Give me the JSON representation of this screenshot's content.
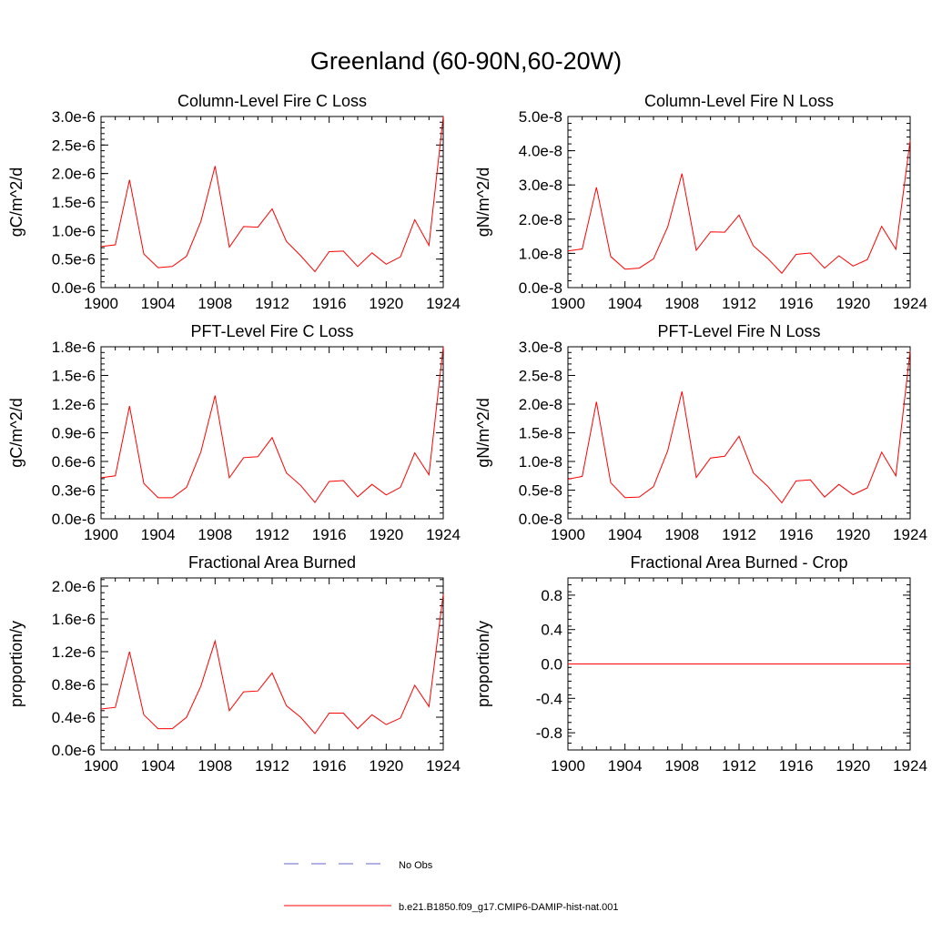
{
  "title": "Greenland (60-90N,60-20W)",
  "legend": [
    {
      "label": "No Obs",
      "color": "#6666cc",
      "style": "dashed"
    },
    {
      "label": "b.e21.B1850.f09_g17.CMIP6-DAMIP-hist-nat.001",
      "color": "#ff0000",
      "style": "solid"
    }
  ],
  "chart_data": [
    {
      "type": "line",
      "title": "Column-Level Fire C Loss",
      "ylabel": "gC/m^2/d",
      "xlim": [
        1900,
        1924
      ],
      "xticks": [
        "1900",
        "1904",
        "1908",
        "1912",
        "1916",
        "1920",
        "1924"
      ],
      "ylim": [
        0,
        3e-06
      ],
      "yticks": [
        "0.0e-6",
        "0.5e-6",
        "1.0e-6",
        "1.5e-6",
        "2.0e-6",
        "2.5e-6",
        "3.0e-6"
      ],
      "series": [
        {
          "name": "b.e21.B1850.f09_g17.CMIP6-DAMIP-hist-nat.001",
          "color": "#ff0000",
          "x": [
            1900,
            1901,
            1902,
            1903,
            1904,
            1905,
            1906,
            1907,
            1908,
            1909,
            1910,
            1911,
            1912,
            1913,
            1914,
            1915,
            1916,
            1917,
            1918,
            1919,
            1920,
            1921,
            1922,
            1923,
            1924
          ],
          "y": [
            7.2e-07,
            7.5e-07,
            1.89e-06,
            5.9e-07,
            3.5e-07,
            3.7e-07,
            5.5e-07,
            1.16e-06,
            2.13e-06,
            7.1e-07,
            1.07e-06,
            1.06e-06,
            1.38e-06,
            8.1e-07,
            5.6e-07,
            2.8e-07,
            6.3e-07,
            6.4e-07,
            3.7e-07,
            6.1e-07,
            4.1e-07,
            5.4e-07,
            1.19e-06,
            7.4e-07,
            3e-06
          ]
        }
      ]
    },
    {
      "type": "line",
      "title": "Column-Level Fire N Loss",
      "ylabel": "gN/m^2/d",
      "xlim": [
        1900,
        1924
      ],
      "xticks": [
        "1900",
        "1904",
        "1908",
        "1912",
        "1916",
        "1920",
        "1924"
      ],
      "ylim": [
        0,
        5e-08
      ],
      "yticks": [
        "0.0e-8",
        "1.0e-8",
        "2.0e-8",
        "3.0e-8",
        "4.0e-8",
        "5.0e-8"
      ],
      "series": [
        {
          "name": "b.e21.B1850.f09_g17.CMIP6-DAMIP-hist-nat.001",
          "color": "#ff0000",
          "x": [
            1900,
            1901,
            1902,
            1903,
            1904,
            1905,
            1906,
            1907,
            1908,
            1909,
            1910,
            1911,
            1912,
            1913,
            1914,
            1915,
            1916,
            1917,
            1918,
            1919,
            1920,
            1921,
            1922,
            1923,
            1924
          ],
          "y": [
            1.07e-08,
            1.13e-08,
            2.93e-08,
            9.1e-09,
            5.4e-09,
            5.7e-09,
            8.4e-09,
            1.78e-08,
            3.33e-08,
            1.09e-08,
            1.63e-08,
            1.62e-08,
            2.12e-08,
            1.22e-08,
            8.6e-09,
            4.2e-09,
            9.7e-09,
            1.01e-08,
            5.7e-09,
            9.3e-09,
            6.3e-09,
            8.2e-09,
            1.79e-08,
            1.12e-08,
            4.3e-08
          ]
        }
      ]
    },
    {
      "type": "line",
      "title": "PFT-Level Fire C Loss",
      "ylabel": "gC/m^2/d",
      "xlim": [
        1900,
        1924
      ],
      "xticks": [
        "1900",
        "1904",
        "1908",
        "1912",
        "1916",
        "1920",
        "1924"
      ],
      "ylim": [
        0,
        1.8e-06
      ],
      "yticks": [
        "0.0e-6",
        "0.3e-6",
        "0.6e-6",
        "0.9e-6",
        "1.2e-6",
        "1.5e-6",
        "1.8e-6"
      ],
      "series": [
        {
          "name": "b.e21.B1850.f09_g17.CMIP6-DAMIP-hist-nat.001",
          "color": "#ff0000",
          "x": [
            1900,
            1901,
            1902,
            1903,
            1904,
            1905,
            1906,
            1907,
            1908,
            1909,
            1910,
            1911,
            1912,
            1913,
            1914,
            1915,
            1916,
            1917,
            1918,
            1919,
            1920,
            1921,
            1922,
            1923,
            1924
          ],
          "y": [
            4.3e-07,
            4.5e-07,
            1.18e-06,
            3.7e-07,
            2.2e-07,
            2.2e-07,
            3.3e-07,
            7e-07,
            1.29e-06,
            4.3e-07,
            6.4e-07,
            6.5e-07,
            8.5e-07,
            4.8e-07,
            3.5e-07,
            1.7e-07,
            3.9e-07,
            4e-07,
            2.3e-07,
            3.6e-07,
            2.5e-07,
            3.3e-07,
            6.9e-07,
            4.6e-07,
            1.8e-06
          ]
        }
      ]
    },
    {
      "type": "line",
      "title": "PFT-Level Fire N Loss",
      "ylabel": "gN/m^2/d",
      "xlim": [
        1900,
        1924
      ],
      "xticks": [
        "1900",
        "1904",
        "1908",
        "1912",
        "1916",
        "1920",
        "1924"
      ],
      "ylim": [
        0,
        3e-08
      ],
      "yticks": [
        "0.0e-8",
        "0.5e-8",
        "1.0e-8",
        "1.5e-8",
        "2.0e-8",
        "2.5e-8",
        "3.0e-8"
      ],
      "series": [
        {
          "name": "b.e21.B1850.f09_g17.CMIP6-DAMIP-hist-nat.001",
          "color": "#ff0000",
          "x": [
            1900,
            1901,
            1902,
            1903,
            1904,
            1905,
            1906,
            1907,
            1908,
            1909,
            1910,
            1911,
            1912,
            1913,
            1914,
            1915,
            1916,
            1917,
            1918,
            1919,
            1920,
            1921,
            1922,
            1923,
            1924
          ],
          "y": [
            6.9e-09,
            7.4e-09,
            2.04e-08,
            6.3e-09,
            3.7e-09,
            3.8e-09,
            5.6e-09,
            1.19e-08,
            2.22e-08,
            7.2e-09,
            1.06e-08,
            1.09e-08,
            1.44e-08,
            8e-09,
            5.7e-09,
            2.8e-09,
            6.6e-09,
            6.8e-09,
            3.8e-09,
            6e-09,
            4.2e-09,
            5.4e-09,
            1.16e-08,
            7.5e-09,
            2.93e-08
          ]
        }
      ]
    },
    {
      "type": "line",
      "title": "Fractional Area Burned",
      "ylabel": "proportion/y",
      "xlim": [
        1900,
        1924
      ],
      "xticks": [
        "1900",
        "1904",
        "1908",
        "1912",
        "1916",
        "1920",
        "1924"
      ],
      "ylim": [
        0,
        2.1e-06
      ],
      "yticks": [
        "0.0e-6",
        "0.4e-6",
        "0.8e-6",
        "1.2e-6",
        "1.6e-6",
        "2.0e-6"
      ],
      "series": [
        {
          "name": "b.e21.B1850.f09_g17.CMIP6-DAMIP-hist-nat.001",
          "color": "#ff0000",
          "x": [
            1900,
            1901,
            1902,
            1903,
            1904,
            1905,
            1906,
            1907,
            1908,
            1909,
            1910,
            1911,
            1912,
            1913,
            1914,
            1915,
            1916,
            1917,
            1918,
            1919,
            1920,
            1921,
            1922,
            1923,
            1924
          ],
          "y": [
            5e-07,
            5.2e-07,
            1.2e-06,
            4.3e-07,
            2.6e-07,
            2.6e-07,
            4e-07,
            7.8e-07,
            1.33e-06,
            4.8e-07,
            7.1e-07,
            7.2e-07,
            9.4e-07,
            5.4e-07,
            4e-07,
            2e-07,
            4.5e-07,
            4.5e-07,
            2.6e-07,
            4.3e-07,
            3.1e-07,
            3.9e-07,
            7.9e-07,
            5.3e-07,
            1.9e-06
          ]
        }
      ]
    },
    {
      "type": "line",
      "title": "Fractional Area Burned - Crop",
      "ylabel": "proportion/y",
      "xlim": [
        1900,
        1924
      ],
      "xticks": [
        "1900",
        "1904",
        "1908",
        "1912",
        "1916",
        "1920",
        "1924"
      ],
      "ylim": [
        -1.0,
        1.0
      ],
      "yticks": [
        "-0.8",
        "-0.4",
        "0.0",
        "0.4",
        "0.8"
      ],
      "series": [
        {
          "name": "b.e21.B1850.f09_g17.CMIP6-DAMIP-hist-nat.001",
          "color": "#ff0000",
          "x": [
            1900,
            1901,
            1902,
            1903,
            1904,
            1905,
            1906,
            1907,
            1908,
            1909,
            1910,
            1911,
            1912,
            1913,
            1914,
            1915,
            1916,
            1917,
            1918,
            1919,
            1920,
            1921,
            1922,
            1923,
            1924
          ],
          "y": [
            0,
            0,
            0,
            0,
            0,
            0,
            0,
            0,
            0,
            0,
            0,
            0,
            0,
            0,
            0,
            0,
            0,
            0,
            0,
            0,
            0,
            0,
            0,
            0,
            0
          ]
        }
      ]
    }
  ]
}
